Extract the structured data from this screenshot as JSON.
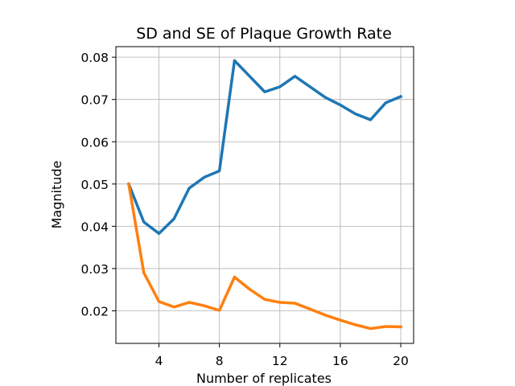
{
  "chart_data": {
    "type": "line",
    "title": "SD and SE of Plaque Growth Rate",
    "xlabel": "Number of replicates",
    "ylabel": "Magnitude",
    "xlim": [
      1.15,
      20.85
    ],
    "ylim": [
      0.0123,
      0.0825
    ],
    "xticks": [
      4,
      8,
      12,
      16,
      20
    ],
    "yticks": [
      0.02,
      0.03,
      0.04,
      0.05,
      0.06,
      0.07,
      0.08
    ],
    "xtick_labels": [
      "4",
      "8",
      "12",
      "16",
      "20"
    ],
    "ytick_labels": [
      "0.02",
      "0.03",
      "0.04",
      "0.05",
      "0.06",
      "0.07",
      "0.08"
    ],
    "grid": true,
    "legend": "none",
    "x": [
      2,
      3,
      4,
      5,
      6,
      7,
      8,
      9,
      10,
      11,
      12,
      13,
      14,
      15,
      16,
      17,
      18,
      19,
      20
    ],
    "series": [
      {
        "color": "#1f77b4",
        "values": [
          0.05,
          0.041,
          0.0383,
          0.0418,
          0.049,
          0.0516,
          0.0531,
          0.0792,
          0.0755,
          0.0718,
          0.073,
          0.0755,
          0.073,
          0.0705,
          0.0687,
          0.0666,
          0.0652,
          0.0692,
          0.0707
        ]
      },
      {
        "color": "#ff7f0e",
        "values": [
          0.05,
          0.029,
          0.0222,
          0.0209,
          0.022,
          0.0212,
          0.0201,
          0.028,
          0.0251,
          0.0227,
          0.022,
          0.0218,
          0.0204,
          0.019,
          0.0178,
          0.0167,
          0.0158,
          0.0163,
          0.0162
        ]
      }
    ]
  }
}
